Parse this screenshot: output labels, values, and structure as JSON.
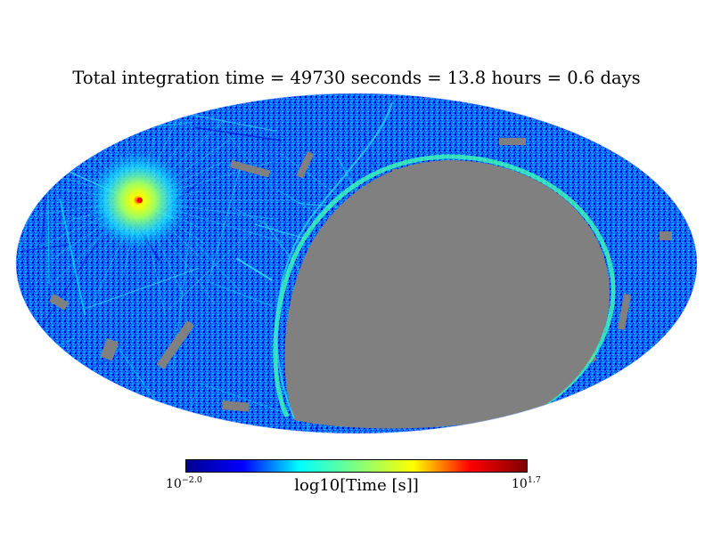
{
  "chart_data": {
    "type": "heatmap",
    "projection": "mollweide",
    "title": "Total integration time = 49730 seconds = 13.8 hours = 0.6 days",
    "colorbar": {
      "label": "log10[Time [s]]",
      "min_base": "10",
      "min_exp": "−2.0",
      "max_base": "10",
      "max_exp": "1.7",
      "range_log10": [
        -2.0,
        1.7
      ],
      "colormap": "jet"
    },
    "unobserved_color": "#808080",
    "features": {
      "hotspot": {
        "lon_deg": -122,
        "lat_deg": 28,
        "log10_time": 1.7
      },
      "unobserved_region": {
        "center_lon_deg": 55,
        "center_lat_deg": -12,
        "description_color": "#808080"
      },
      "background_level_log10": -1.0
    }
  },
  "colors": {
    "jet_stops": [
      "#00008f",
      "#0000ff",
      "#00ffff",
      "#7fff7f",
      "#ffff00",
      "#ff0000",
      "#800000"
    ],
    "gray": "#808080"
  }
}
